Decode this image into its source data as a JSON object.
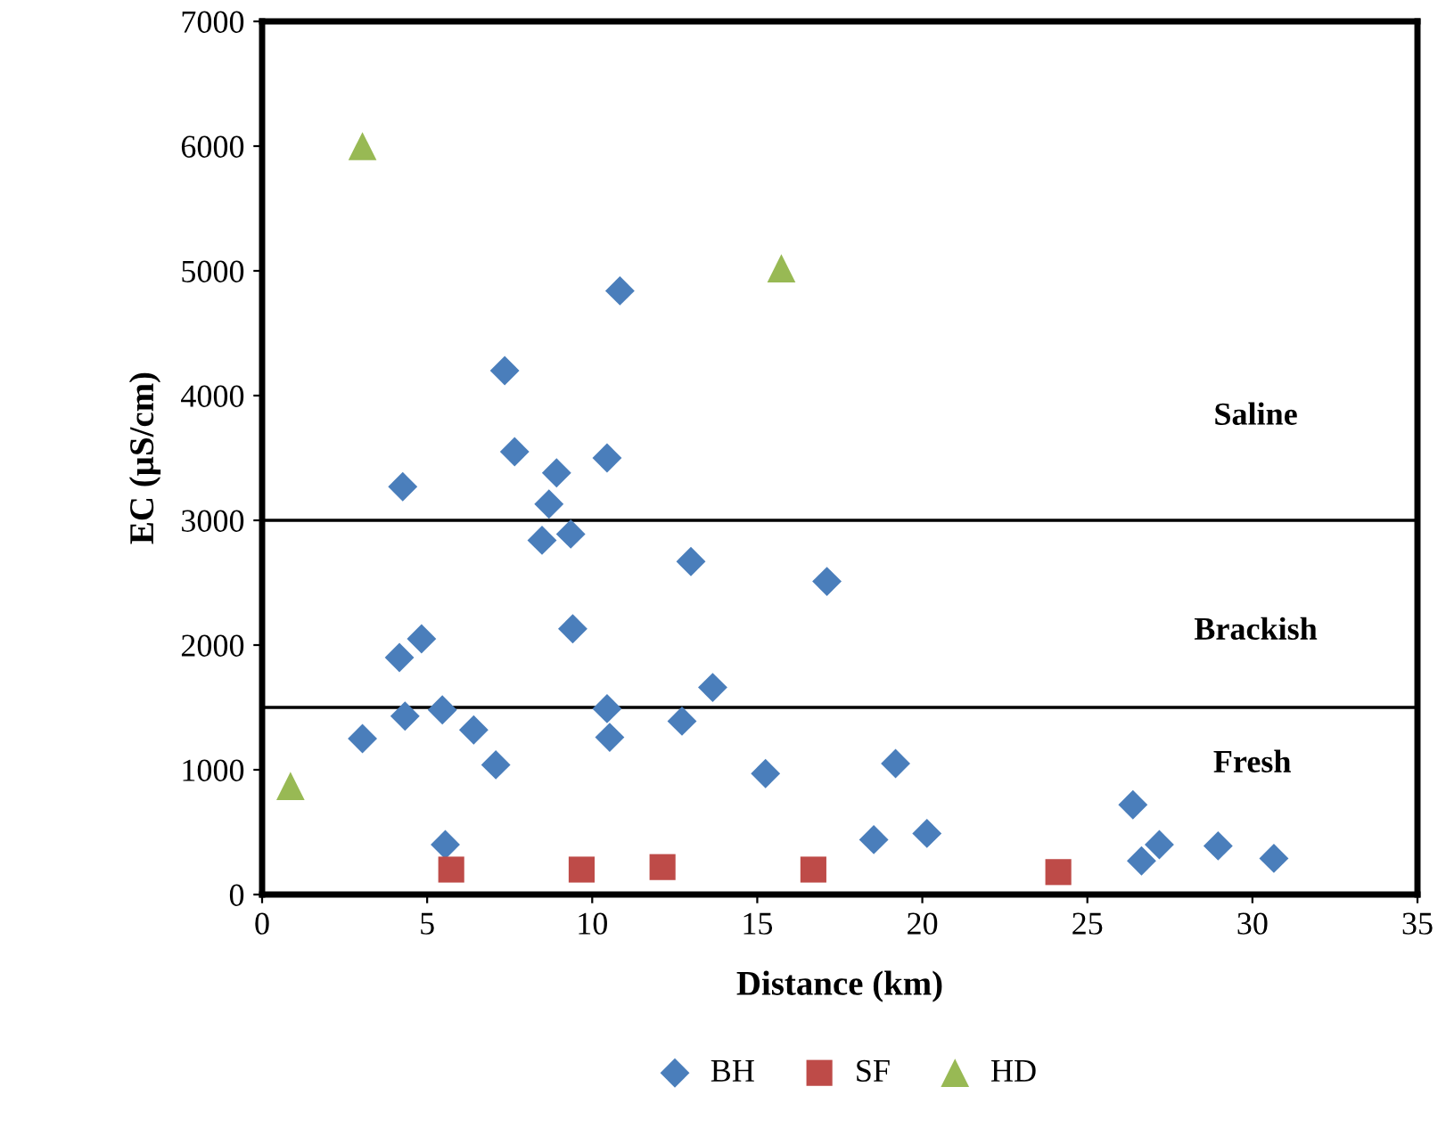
{
  "chart_data": {
    "type": "scatter",
    "xlabel": "Distance (km)",
    "ylabel": "EC (µS/cm)",
    "xlim": [
      0,
      35
    ],
    "xticks": [
      0,
      5,
      10,
      15,
      20,
      25,
      30,
      35
    ],
    "ylim": [
      0,
      7000
    ],
    "yticks": [
      0,
      1000,
      2000,
      3000,
      4000,
      5000,
      6000,
      7000
    ],
    "grid": false,
    "legend": "bottom",
    "series": [
      {
        "name": "BH",
        "color": "#4a7ebb",
        "marker": "diamond",
        "x": [
          3.04,
          4.26,
          4.16,
          4.83,
          4.33,
          5.46,
          5.55,
          6.41,
          7.08,
          7.35,
          7.65,
          8.92,
          8.69,
          8.48,
          9.35,
          9.41,
          10.45,
          10.84,
          10.45,
          10.53,
          12.99,
          12.72,
          13.65,
          15.25,
          17.11,
          19.19,
          18.53,
          20.14,
          26.38,
          26.64,
          27.18,
          28.96,
          30.65
        ],
        "values": [
          1250,
          3270,
          1900,
          2050,
          1430,
          1480,
          400,
          1320,
          1040,
          4200,
          3550,
          3380,
          3130,
          2840,
          2890,
          2130,
          3500,
          4840,
          1490,
          1260,
          2670,
          1390,
          1660,
          970,
          2510,
          1050,
          440,
          490,
          720,
          270,
          400,
          390,
          290
        ]
      },
      {
        "name": "SF",
        "color": "#be4b48",
        "marker": "square",
        "x": [
          5.73,
          9.68,
          12.13,
          16.7,
          24.12
        ],
        "values": [
          200,
          200,
          220,
          200,
          180
        ]
      },
      {
        "name": "HD",
        "color": "#98b954",
        "marker": "triangle",
        "x": [
          3.04,
          15.73,
          0.86
        ],
        "values": [
          6000,
          5020,
          870
        ]
      }
    ],
    "ref_lines": [
      {
        "axis": "y",
        "value": 3000,
        "color": "#000000"
      },
      {
        "axis": "y",
        "value": 1500,
        "color": "#000000"
      }
    ],
    "annotations": [
      "Saline",
      "Brackish",
      "Fresh"
    ]
  }
}
